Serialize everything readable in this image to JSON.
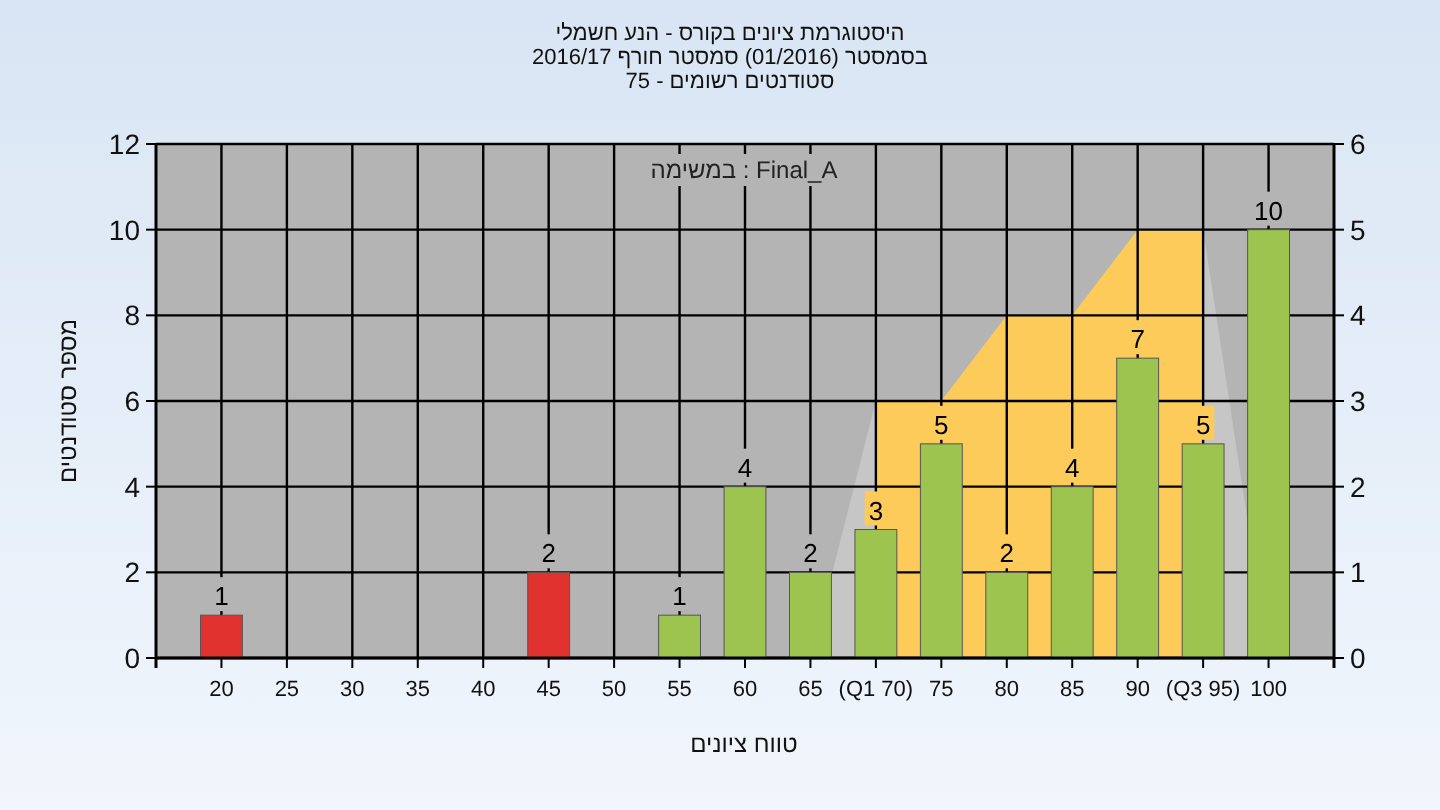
{
  "chart_data": {
    "type": "bar",
    "title": "היסטוגרמת ציונים בקורס - הנע חשמלי",
    "subtitle": "בסמסטר (01/2016) סמסטר חורף 2016/17\nסטודנטים רשומים - 75",
    "xlabel": "טווח ציונים",
    "ylabel": "מספר סטודנטים",
    "annotations": [
      "במשימה : Final_A"
    ],
    "xlim": [
      15,
      105
    ],
    "xticks": [
      20,
      25,
      30,
      35,
      40,
      45,
      50,
      55,
      60,
      65,
      {
        "value": 70,
        "label": "(Q1 70)"
      },
      75,
      80,
      85,
      90,
      {
        "value": 95,
        "label": "(Q3 95)"
      },
      100
    ],
    "ylim": [
      0,
      12
    ],
    "yticks": [
      0,
      2,
      4,
      6,
      8,
      10,
      12
    ],
    "y2lim": [
      0,
      6
    ],
    "y2ticks": [
      0,
      1,
      2,
      3,
      4,
      5,
      6
    ],
    "grid": true,
    "series": [
      {
        "type": "area",
        "axis": "y2",
        "color": "#c6c6c6",
        "x": [
          65,
          70
        ],
        "values": [
          0,
          3
        ]
      },
      {
        "type": "area",
        "axis": "y2",
        "color": "#c6c6c6",
        "x": [
          95,
          100
        ],
        "values": [
          5,
          0
        ]
      },
      {
        "type": "area",
        "axis": "y2",
        "color": "#fdcb5a",
        "x": [
          70,
          75,
          80,
          85,
          90,
          95
        ],
        "values": [
          3,
          3,
          4,
          4,
          5,
          5
        ]
      },
      {
        "x": [
          20,
          45,
          55,
          60,
          65,
          70,
          75,
          80,
          85,
          90,
          95,
          100
        ],
        "values": [
          1,
          2,
          1,
          4,
          2,
          3,
          5,
          2,
          4,
          7,
          5,
          10
        ],
        "colors": [
          "#e0322f",
          "#e0322f",
          "#9cc44e",
          "#9cc44e",
          "#9cc44e",
          "#9cc44e",
          "#9cc44e",
          "#9cc44e",
          "#9cc44e",
          "#9cc44e",
          "#9cc44e",
          "#9cc44e"
        ],
        "value_labels": [
          "1",
          "2",
          "1",
          "4",
          "2",
          "3",
          "5",
          "2",
          "4",
          "7",
          "5",
          "10"
        ]
      }
    ]
  }
}
